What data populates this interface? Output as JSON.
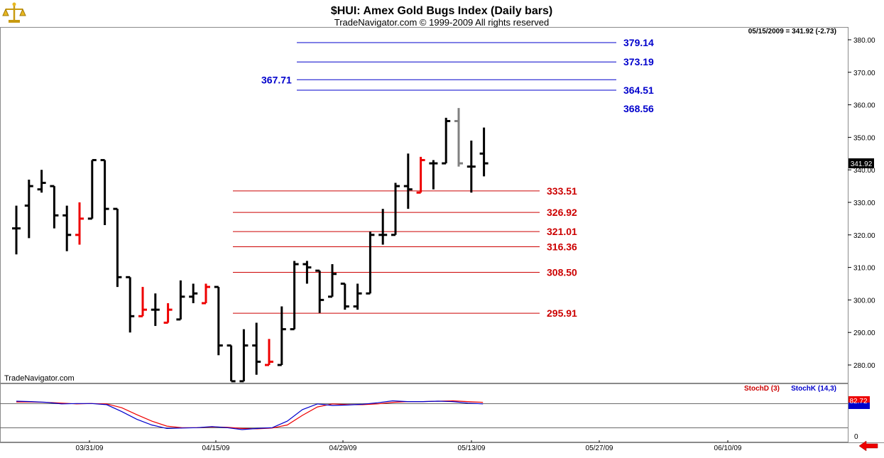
{
  "header": {
    "title": "$HUI:  Amex Gold Bugs Index  (Daily bars)",
    "subtitle": "TradeNavigator.com © 1999-2009 All rights reserved",
    "quote": "05/15/2009 = 341.92 (-2.73)",
    "last_price_tag": "341.92",
    "watermark": "TradeNavigator.com"
  },
  "indicator": {
    "stoch_d_label": "StochD (3)",
    "stoch_k_label": "StochK (14,3)",
    "value_tag": "82.72",
    "zero_label": "0"
  },
  "colors": {
    "bar_normal": "#000000",
    "bar_red": "#ee0000",
    "bar_gray": "#808080",
    "upper_levels": "#0000cc",
    "lower_levels": "#cc0000",
    "stoch_d": "#ee0000",
    "stoch_k": "#0000cc",
    "nav_arrow": "#ee0000"
  },
  "icons": {
    "logo": "scales-icon",
    "nav": "left-arrow-icon"
  },
  "chart_data": [
    {
      "type": "ohlc",
      "title": "$HUI:  Amex Gold Bugs Index  (Daily bars)",
      "ylim": [
        275,
        385
      ],
      "yticks": [
        "280.00",
        "290.00",
        "300.00",
        "310.00",
        "320.00",
        "330.00",
        "340.00",
        "350.00",
        "360.00",
        "370.00",
        "380.00"
      ],
      "x_labels": [
        "03/31/09",
        "04/15/09",
        "04/29/09",
        "05/13/09",
        "05/27/09",
        "06/10/09"
      ],
      "bars": [
        {
          "o": 322,
          "h": 329,
          "l": 314,
          "c": 322,
          "color": "black"
        },
        {
          "o": 329,
          "h": 337,
          "l": 319,
          "c": 335,
          "color": "black"
        },
        {
          "o": 334,
          "h": 340,
          "l": 333,
          "c": 336,
          "color": "black"
        },
        {
          "o": 335,
          "h": 335,
          "l": 322,
          "c": 326,
          "color": "black"
        },
        {
          "o": 326,
          "h": 329,
          "l": 315,
          "c": 320,
          "color": "black"
        },
        {
          "o": 320,
          "h": 330,
          "l": 317,
          "c": 325,
          "color": "red"
        },
        {
          "o": 325,
          "h": 343,
          "l": 325,
          "c": 343,
          "color": "black"
        },
        {
          "o": 343,
          "h": 343,
          "l": 323,
          "c": 328,
          "color": "black"
        },
        {
          "o": 328,
          "h": 328,
          "l": 304,
          "c": 307,
          "color": "black"
        },
        {
          "o": 307,
          "h": 307,
          "l": 290,
          "c": 295,
          "color": "black"
        },
        {
          "o": 295,
          "h": 304,
          "l": 295,
          "c": 297,
          "color": "red"
        },
        {
          "o": 297,
          "h": 302,
          "l": 292,
          "c": 297,
          "color": "black"
        },
        {
          "o": 293,
          "h": 299,
          "l": 293,
          "c": 297,
          "color": "red"
        },
        {
          "o": 294,
          "h": 306,
          "l": 294,
          "c": 301,
          "color": "black"
        },
        {
          "o": 301,
          "h": 305,
          "l": 299,
          "c": 302,
          "color": "black"
        },
        {
          "o": 299,
          "h": 305,
          "l": 299,
          "c": 304,
          "color": "red"
        },
        {
          "o": 304,
          "h": 304,
          "l": 283,
          "c": 286,
          "color": "black"
        },
        {
          "o": 286,
          "h": 286,
          "l": 275,
          "c": 275,
          "color": "black"
        },
        {
          "o": 275,
          "h": 291,
          "l": 275,
          "c": 286,
          "color": "black"
        },
        {
          "o": 286,
          "h": 293,
          "l": 277,
          "c": 281,
          "color": "black"
        },
        {
          "o": 280,
          "h": 288,
          "l": 280,
          "c": 281,
          "color": "red"
        },
        {
          "o": 280,
          "h": 298,
          "l": 280,
          "c": 291,
          "color": "black"
        },
        {
          "o": 291,
          "h": 312,
          "l": 291,
          "c": 311,
          "color": "black"
        },
        {
          "o": 311,
          "h": 312,
          "l": 305,
          "c": 310,
          "color": "black"
        },
        {
          "o": 309,
          "h": 309,
          "l": 296,
          "c": 300,
          "color": "black"
        },
        {
          "o": 301,
          "h": 311,
          "l": 301,
          "c": 308,
          "color": "black"
        },
        {
          "o": 305,
          "h": 305,
          "l": 297,
          "c": 298,
          "color": "black"
        },
        {
          "o": 298,
          "h": 305,
          "l": 297,
          "c": 302,
          "color": "black"
        },
        {
          "o": 302,
          "h": 321,
          "l": 302,
          "c": 320,
          "color": "black"
        },
        {
          "o": 320,
          "h": 328,
          "l": 317,
          "c": 320,
          "color": "black"
        },
        {
          "o": 320,
          "h": 336,
          "l": 320,
          "c": 335,
          "color": "black"
        },
        {
          "o": 335,
          "h": 345,
          "l": 328,
          "c": 334,
          "color": "black"
        },
        {
          "o": 333,
          "h": 344,
          "l": 333,
          "c": 343,
          "color": "red"
        },
        {
          "o": 342,
          "h": 343,
          "l": 334,
          "c": 342,
          "color": "black"
        },
        {
          "o": 342,
          "h": 356,
          "l": 342,
          "c": 355,
          "color": "black"
        },
        {
          "o": 355,
          "h": 359,
          "l": 341,
          "c": 342,
          "color": "gray"
        },
        {
          "o": 341,
          "h": 349,
          "l": 333,
          "c": 341,
          "color": "black"
        },
        {
          "o": 345,
          "h": 353,
          "l": 338,
          "c": 342,
          "color": "black"
        }
      ],
      "upper_levels": [
        {
          "value": 379.14,
          "label": "379.14"
        },
        {
          "value": 373.19,
          "label": "373.19"
        },
        {
          "value": 367.71,
          "label": "367.71"
        },
        {
          "value": 364.51,
          "label": "364.51"
        }
      ],
      "upper_extra_label": {
        "value": 358.8,
        "label": "368.56"
      },
      "lower_levels": [
        {
          "value": 333.51,
          "label": "333.51"
        },
        {
          "value": 326.92,
          "label": "326.92"
        },
        {
          "value": 321.01,
          "label": "321.01"
        },
        {
          "value": 316.36,
          "label": "316.36"
        },
        {
          "value": 308.5,
          "label": "308.50"
        },
        {
          "value": 295.91,
          "label": "295.91"
        }
      ]
    },
    {
      "type": "line",
      "title": "",
      "ylim": [
        0,
        100
      ],
      "series": [
        {
          "name": "StochD (3)",
          "values": [
            85,
            85,
            84,
            82,
            80,
            81,
            80,
            70,
            52,
            35,
            22,
            18,
            18,
            20,
            19,
            16,
            15,
            17,
            25,
            50,
            72,
            80,
            78,
            78,
            80,
            84,
            86,
            86,
            87,
            88,
            86,
            84
          ]
        },
        {
          "name": "StochK (14,3)",
          "values": [
            87,
            86,
            84,
            80,
            81,
            81,
            78,
            60,
            40,
            25,
            16,
            17,
            18,
            21,
            18,
            13,
            16,
            18,
            35,
            65,
            80,
            76,
            77,
            79,
            83,
            88,
            86,
            86,
            87,
            86,
            82,
            80
          ]
        }
      ],
      "value_label": "82.72"
    }
  ]
}
